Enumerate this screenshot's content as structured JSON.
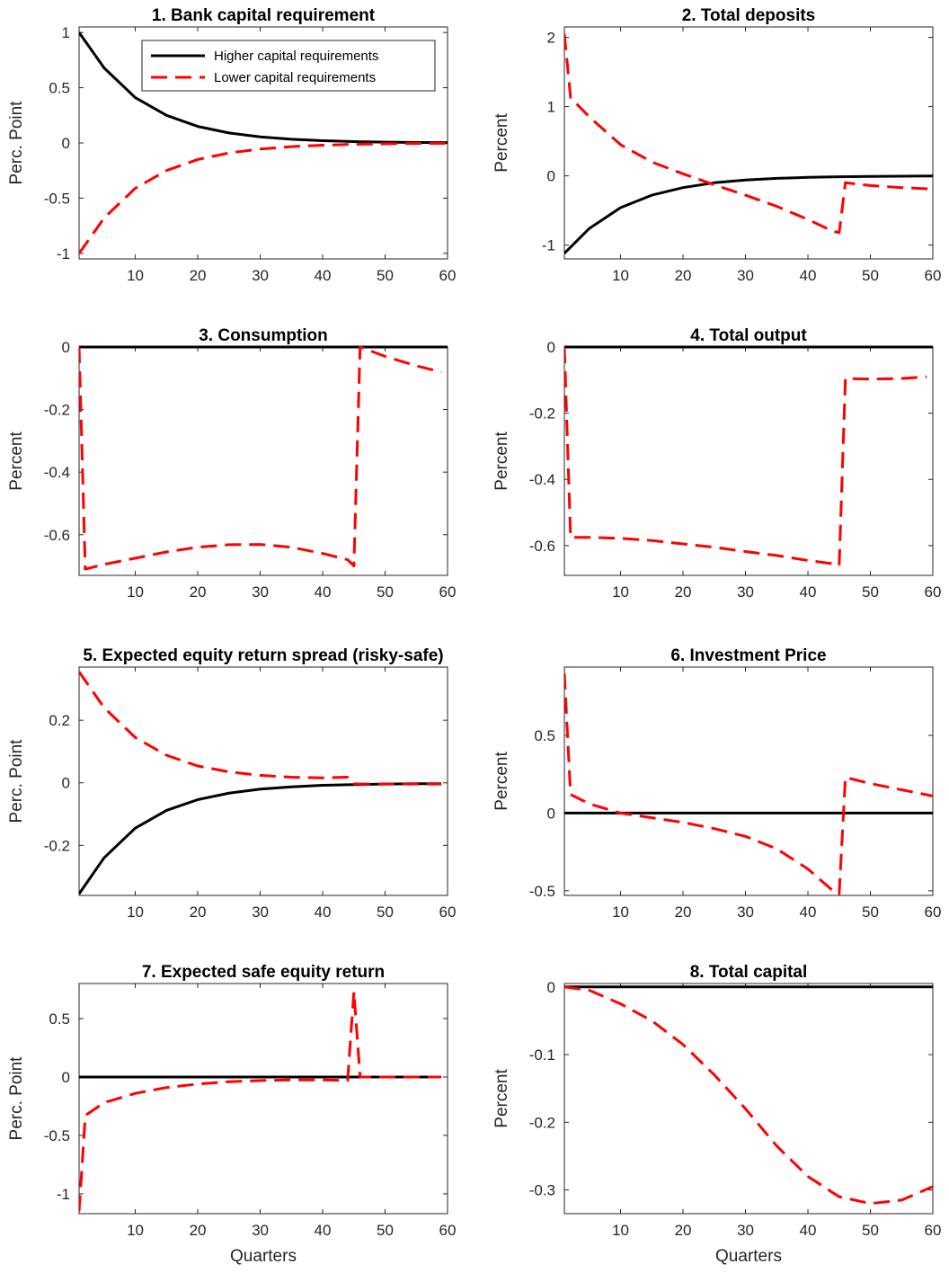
{
  "chart_data": [
    {
      "type": "line",
      "title": "1. Bank capital requirement",
      "xlabel": "",
      "ylabel": "Perc. Point",
      "xlim": [
        1,
        60
      ],
      "ylim": [
        -1.05,
        1.05
      ],
      "xticks": [
        10,
        20,
        30,
        40,
        50,
        60
      ],
      "yticks": [
        1,
        0.5,
        0,
        -0.5,
        -1
      ],
      "ytick_labels": [
        "1",
        "0.5",
        "0",
        "-0.5",
        "-1"
      ],
      "legend": {
        "position": "top-right",
        "entries": [
          "Higher capital requirements",
          "Lower capital requirements"
        ]
      },
      "series": [
        {
          "name": "Higher capital requirements",
          "color": "#000000",
          "style": "solid",
          "x": [
            1,
            5,
            10,
            15,
            20,
            25,
            30,
            35,
            40,
            45,
            50,
            55,
            60
          ],
          "y": [
            1.0,
            0.68,
            0.41,
            0.25,
            0.15,
            0.09,
            0.055,
            0.033,
            0.02,
            0.012,
            0.007,
            0.004,
            0.003
          ]
        },
        {
          "name": "Lower capital requirements",
          "color": "#ff0000",
          "style": "dashed",
          "x": [
            1,
            5,
            10,
            15,
            20,
            25,
            30,
            35,
            40,
            45,
            50,
            55,
            60
          ],
          "y": [
            -1.0,
            -0.68,
            -0.41,
            -0.25,
            -0.15,
            -0.09,
            -0.055,
            -0.033,
            -0.02,
            -0.012,
            -0.007,
            -0.004,
            -0.003
          ]
        }
      ]
    },
    {
      "type": "line",
      "title": "2. Total deposits",
      "xlabel": "",
      "ylabel": "Percent",
      "xlim": [
        1,
        60
      ],
      "ylim": [
        -1.2,
        2.15
      ],
      "xticks": [
        10,
        20,
        30,
        40,
        50,
        60
      ],
      "yticks": [
        2,
        1,
        0,
        -1
      ],
      "ytick_labels": [
        "2",
        "1",
        "0",
        "-1"
      ],
      "series": [
        {
          "name": "Higher capital requirements",
          "color": "#000000",
          "style": "solid",
          "x": [
            1,
            5,
            10,
            15,
            20,
            25,
            30,
            35,
            40,
            45,
            50,
            55,
            60
          ],
          "y": [
            -1.12,
            -0.76,
            -0.46,
            -0.28,
            -0.17,
            -0.1,
            -0.06,
            -0.037,
            -0.022,
            -0.013,
            -0.008,
            -0.005,
            -0.003
          ]
        },
        {
          "name": "Lower capital requirements",
          "color": "#ff0000",
          "style": "dashed",
          "x": [
            1,
            2,
            5,
            10,
            15,
            20,
            25,
            30,
            35,
            40,
            44,
            45,
            46,
            50,
            55,
            60
          ],
          "y": [
            2.05,
            1.13,
            0.85,
            0.45,
            0.2,
            0.03,
            -0.13,
            -0.28,
            -0.44,
            -0.63,
            -0.8,
            -0.82,
            -0.1,
            -0.14,
            -0.17,
            -0.19
          ]
        }
      ]
    },
    {
      "type": "line",
      "title": "3. Consumption",
      "xlabel": "",
      "ylabel": "Percent",
      "xlim": [
        1,
        60
      ],
      "ylim": [
        -0.73,
        0.0
      ],
      "xticks": [
        10,
        20,
        30,
        40,
        50,
        60
      ],
      "yticks": [
        0,
        -0.2,
        -0.4,
        -0.6
      ],
      "ytick_labels": [
        "0",
        "-0.2",
        "-0.4",
        "-0.6"
      ],
      "series": [
        {
          "name": "Higher capital requirements",
          "color": "#000000",
          "style": "solid",
          "x": [
            1,
            60
          ],
          "y": [
            0,
            0
          ]
        },
        {
          "name": "Lower capital requirements",
          "color": "#ff0000",
          "style": "dashed",
          "x": [
            1,
            2,
            5,
            10,
            15,
            20,
            25,
            30,
            35,
            40,
            44,
            45,
            46,
            50,
            55,
            59
          ],
          "y": [
            0,
            -0.71,
            -0.695,
            -0.675,
            -0.655,
            -0.64,
            -0.632,
            -0.631,
            -0.64,
            -0.66,
            -0.68,
            -0.7,
            0.0,
            -0.03,
            -0.06,
            -0.08
          ]
        }
      ]
    },
    {
      "type": "line",
      "title": "4. Total output",
      "xlabel": "",
      "ylabel": "Percent",
      "xlim": [
        1,
        60
      ],
      "ylim": [
        -0.69,
        0.0
      ],
      "xticks": [
        10,
        20,
        30,
        40,
        50,
        60
      ],
      "yticks": [
        0,
        -0.2,
        -0.4,
        -0.6
      ],
      "ytick_labels": [
        "0",
        "-0.2",
        "-0.4",
        "-0.6"
      ],
      "series": [
        {
          "name": "Higher capital requirements",
          "color": "#000000",
          "style": "solid",
          "x": [
            1,
            60
          ],
          "y": [
            0,
            0
          ]
        },
        {
          "name": "Lower capital requirements",
          "color": "#ff0000",
          "style": "dashed",
          "x": [
            1,
            2,
            5,
            10,
            15,
            20,
            25,
            30,
            35,
            40,
            44,
            45,
            46,
            50,
            55,
            59
          ],
          "y": [
            0,
            -0.575,
            -0.575,
            -0.578,
            -0.585,
            -0.595,
            -0.605,
            -0.618,
            -0.63,
            -0.645,
            -0.655,
            -0.66,
            -0.095,
            -0.097,
            -0.095,
            -0.09
          ]
        }
      ]
    },
    {
      "type": "line",
      "title": "5. Expected equity return spread (risky-safe)",
      "xlabel": "",
      "ylabel": "Perc. Point",
      "xlim": [
        1,
        60
      ],
      "ylim": [
        -0.36,
        0.37
      ],
      "xticks": [
        10,
        20,
        30,
        40,
        50,
        60
      ],
      "yticks": [
        0.2,
        0,
        -0.2
      ],
      "ytick_labels": [
        "0.2",
        "0",
        "-0.2"
      ],
      "series": [
        {
          "name": "Higher capital requirements",
          "color": "#000000",
          "style": "solid",
          "x": [
            1,
            5,
            10,
            15,
            20,
            25,
            30,
            35,
            40,
            45,
            50,
            55,
            59
          ],
          "y": [
            -0.355,
            -0.24,
            -0.145,
            -0.088,
            -0.054,
            -0.033,
            -0.02,
            -0.013,
            -0.008,
            -0.006,
            -0.004,
            -0.003,
            -0.003
          ]
        },
        {
          "name": "Lower capital requirements",
          "color": "#ff0000",
          "style": "dashed",
          "x": [
            1,
            5,
            10,
            15,
            20,
            25,
            30,
            35,
            40,
            44,
            45,
            46,
            50,
            55,
            59
          ],
          "y": [
            0.355,
            0.24,
            0.145,
            0.088,
            0.054,
            0.035,
            0.024,
            0.018,
            0.016,
            0.018,
            -0.003,
            -0.004,
            -0.004,
            -0.004,
            -0.004
          ]
        }
      ]
    },
    {
      "type": "line",
      "title": "6. Investment Price",
      "xlabel": "",
      "ylabel": "Percent",
      "xlim": [
        1,
        60
      ],
      "ylim": [
        -0.53,
        0.94
      ],
      "xticks": [
        10,
        20,
        30,
        40,
        50,
        60
      ],
      "yticks": [
        0.5,
        0,
        -0.5
      ],
      "ytick_labels": [
        "0.5",
        "0",
        "-0.5"
      ],
      "series": [
        {
          "name": "Higher capital requirements",
          "color": "#000000",
          "style": "solid",
          "x": [
            1,
            60
          ],
          "y": [
            0,
            0
          ]
        },
        {
          "name": "Lower capital requirements",
          "color": "#ff0000",
          "style": "dashed",
          "x": [
            1,
            2,
            5,
            10,
            15,
            20,
            25,
            30,
            35,
            40,
            44,
            45,
            46,
            50,
            55,
            60
          ],
          "y": [
            0.9,
            0.12,
            0.06,
            0.0,
            -0.03,
            -0.06,
            -0.1,
            -0.15,
            -0.23,
            -0.36,
            -0.5,
            -0.52,
            0.23,
            0.19,
            0.15,
            0.11
          ]
        }
      ]
    },
    {
      "type": "line",
      "title": "7. Expected safe equity return",
      "xlabel": "Quarters",
      "ylabel": "Perc. Point",
      "xlim": [
        1,
        60
      ],
      "ylim": [
        -1.17,
        0.8
      ],
      "xticks": [
        10,
        20,
        30,
        40,
        50,
        60
      ],
      "yticks": [
        0.5,
        0,
        -0.5,
        -1
      ],
      "ytick_labels": [
        "0.5",
        "0",
        "-0.5",
        "-1"
      ],
      "series": [
        {
          "name": "Higher capital requirements",
          "color": "#000000",
          "style": "solid",
          "x": [
            1,
            59
          ],
          "y": [
            0,
            0
          ]
        },
        {
          "name": "Lower capital requirements",
          "color": "#ff0000",
          "style": "dashed",
          "x": [
            1,
            2,
            5,
            10,
            15,
            20,
            25,
            30,
            35,
            40,
            44,
            45,
            46,
            50,
            55,
            59
          ],
          "y": [
            -1.15,
            -0.33,
            -0.22,
            -0.14,
            -0.09,
            -0.06,
            -0.04,
            -0.03,
            -0.025,
            -0.025,
            -0.03,
            0.73,
            0.0,
            0.0,
            0.0,
            0.0
          ]
        }
      ]
    },
    {
      "type": "line",
      "title": "8. Total capital",
      "xlabel": "Quarters",
      "ylabel": "Percent",
      "xlim": [
        1,
        60
      ],
      "ylim": [
        -0.335,
        0.005
      ],
      "xticks": [
        10,
        20,
        30,
        40,
        50,
        60
      ],
      "yticks": [
        0,
        -0.1,
        -0.2,
        -0.3
      ],
      "ytick_labels": [
        "0",
        "-0.1",
        "-0.2",
        "-0.3"
      ],
      "series": [
        {
          "name": "Higher capital requirements",
          "color": "#000000",
          "style": "solid",
          "x": [
            1,
            60
          ],
          "y": [
            0,
            0
          ]
        },
        {
          "name": "Lower capital requirements",
          "color": "#ff0000",
          "style": "dashed",
          "x": [
            1,
            5,
            10,
            15,
            20,
            25,
            30,
            35,
            40,
            45,
            50,
            55,
            60
          ],
          "y": [
            0.0,
            -0.005,
            -0.025,
            -0.05,
            -0.085,
            -0.13,
            -0.18,
            -0.235,
            -0.28,
            -0.31,
            -0.32,
            -0.315,
            -0.295
          ]
        }
      ]
    }
  ]
}
